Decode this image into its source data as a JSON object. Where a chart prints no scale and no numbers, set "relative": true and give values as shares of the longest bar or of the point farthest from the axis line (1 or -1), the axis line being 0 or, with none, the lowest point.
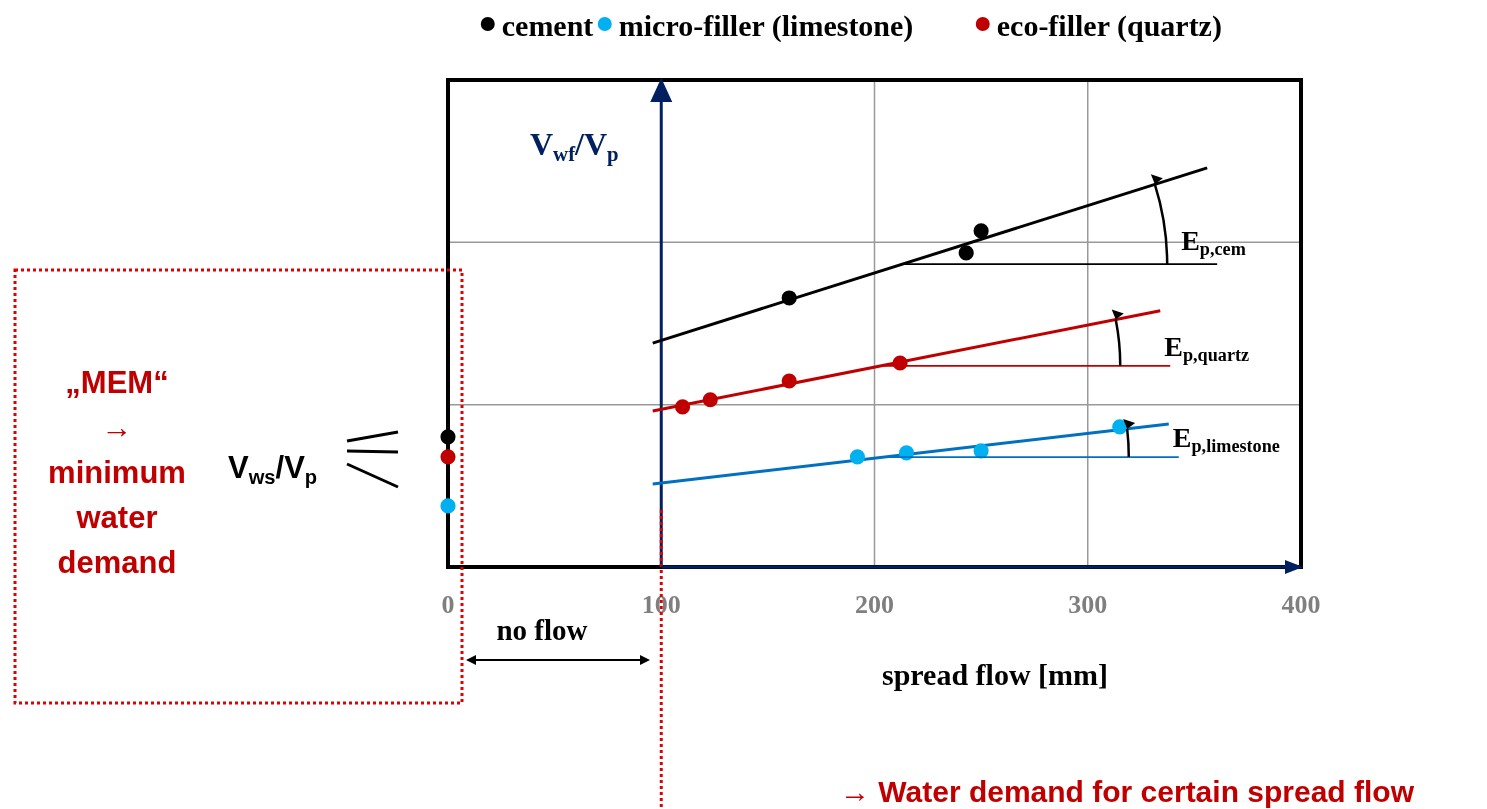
{
  "chart_data": {
    "type": "scatter",
    "relative": true,
    "xlabel": "spread flow [mm]",
    "ylabel": "V$_{wf}$/V$_{p}$",
    "xlim": [
      0,
      400
    ],
    "xticks": [
      0,
      100,
      200,
      300,
      400
    ],
    "grid": true,
    "legend": "top",
    "tick_labels": "x",
    "marker": "circle",
    "series": [
      {
        "name": "cement",
        "type": "scatter",
        "color": "#000000",
        "x": [
          0,
          160,
          243,
          250
        ],
        "values": [
          0.326,
          0.674,
          0.787,
          0.842
        ]
      },
      {
        "name": "micro-filler (limestone)",
        "type": "scatter",
        "color": "#00b0f0",
        "x": [
          0,
          192,
          215,
          250,
          315
        ],
        "values": [
          0.153,
          0.276,
          0.286,
          0.291,
          0.351
        ]
      },
      {
        "name": "eco-filler (quartz)",
        "type": "scatter",
        "color": "#c00000",
        "x": [
          0,
          110,
          123,
          160,
          212
        ],
        "values": [
          0.276,
          0.401,
          0.419,
          0.466,
          0.511
        ]
      },
      {
        "type": "line",
        "marker": "none",
        "color": "#000000",
        "x": [
          96,
          356
        ],
        "values": [
          0.561,
          1
        ]
      },
      {
        "type": "line",
        "marker": "none",
        "color": "#0070c0",
        "x": [
          96,
          338
        ],
        "values": [
          0.208,
          0.358
        ]
      },
      {
        "type": "line",
        "marker": "none",
        "color": "#c00000",
        "x": [
          96,
          334
        ],
        "values": [
          0.391,
          0.642
        ]
      }
    ],
    "ref_lines": [
      {
        "axis": "x",
        "value": 100,
        "color": "#002060",
        "line_style": "solid"
      },
      {
        "axis": "x",
        "value": 100,
        "color": "#e00000",
        "line_style": "dotted"
      }
    ],
    "annotations": [
      "E$_{p,cem}$",
      "E$_{p,quartz}$",
      "E$_{p,limestone}$",
      "„MEM“ → minimum water demand",
      "V$_{ws}$/V$_{p}$",
      "no flow",
      "→ Water demand for certain spread flow"
    ]
  }
}
